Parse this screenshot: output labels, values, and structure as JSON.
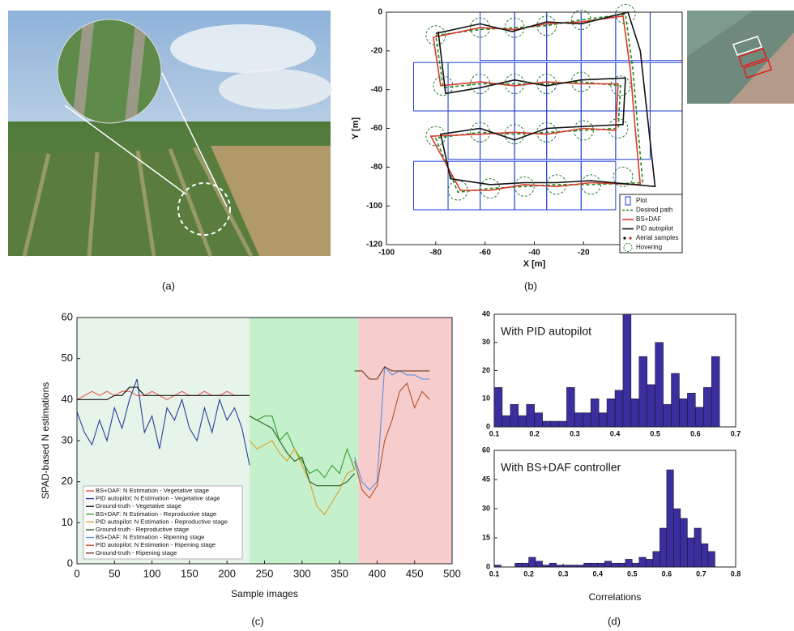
{
  "captions": [
    "(a)",
    "(b)",
    "(c)",
    "(d)"
  ],
  "chart_data": [
    {
      "type": "line",
      "xlabel": "X [m]",
      "ylabel": "Y [m]",
      "xlim": [
        -100,
        20
      ],
      "ylim": [
        -120,
        0
      ],
      "xticks": [
        -100,
        -80,
        -60,
        -40,
        -20
      ],
      "yticks": [
        0,
        -20,
        -40,
        -60,
        -80,
        -100,
        -120
      ],
      "plots": {
        "name": "Plot",
        "color": "#1f3fd6",
        "boxes": [
          [
            -62,
            0,
            -48,
            -25
          ],
          [
            -48,
            0,
            -35,
            -25
          ],
          [
            -35,
            0,
            -21,
            -25
          ],
          [
            -21,
            0,
            -7,
            -25
          ],
          [
            -7,
            0,
            7,
            -25
          ],
          [
            7,
            0,
            20,
            -25
          ],
          [
            -89,
            -26,
            -75,
            -51
          ],
          [
            -75,
            -26,
            -62,
            -51
          ],
          [
            -62,
            -26,
            -48,
            -51
          ],
          [
            -48,
            -26,
            -35,
            -51
          ],
          [
            -35,
            -26,
            -21,
            -51
          ],
          [
            -21,
            -26,
            -7,
            -51
          ],
          [
            -7,
            -26,
            7,
            -51
          ],
          [
            7,
            -26,
            20,
            -51
          ],
          [
            -75,
            -51,
            -62,
            -76
          ],
          [
            -62,
            -51,
            -48,
            -76
          ],
          [
            -48,
            -51,
            -35,
            -76
          ],
          [
            -35,
            -51,
            -21,
            -76
          ],
          [
            -21,
            -51,
            -7,
            -76
          ],
          [
            -7,
            -51,
            7,
            -76
          ],
          [
            -89,
            -77,
            -75,
            -102
          ],
          [
            -75,
            -77,
            -62,
            -102
          ],
          [
            -62,
            -77,
            -48,
            -102
          ],
          [
            -48,
            -77,
            -35,
            -102
          ],
          [
            -35,
            -77,
            -21,
            -102
          ],
          [
            -21,
            -77,
            -7,
            -102
          ]
        ]
      },
      "series": [
        {
          "name": "Desired path",
          "color": "#1a8a1a",
          "style": "dashed",
          "x": [
            -80,
            -62,
            -48,
            -35,
            -21,
            -3,
            0,
            2,
            4,
            -17,
            -31,
            -44,
            -58,
            -71,
            -80,
            -62,
            -48,
            -35,
            -20,
            -6,
            -5,
            -21,
            -35,
            -48,
            -62,
            -77,
            -80
          ],
          "values": [
            -12,
            -9,
            -8,
            -7,
            -4,
            -1,
            -30,
            -60,
            -88,
            -89,
            -89,
            -90,
            -91,
            -93,
            -65,
            -62,
            -63,
            -62,
            -61,
            -60,
            -38,
            -36,
            -37,
            -37,
            -37,
            -39,
            -12
          ]
        },
        {
          "name": "BS+DAF",
          "color": "#d9382c",
          "style": "solid",
          "x": [
            -81,
            -62,
            -48,
            -35,
            -21,
            -4,
            -1,
            1,
            3,
            -17,
            -31,
            -44,
            -58,
            -70,
            -82,
            -62,
            -48,
            -35,
            -20,
            -7,
            -6,
            -21,
            -35,
            -48,
            -62,
            -78,
            -81
          ],
          "values": [
            -13,
            -8,
            -9,
            -6,
            -5,
            -2,
            -30,
            -61,
            -89,
            -88,
            -90,
            -89,
            -92,
            -92,
            -64,
            -63,
            -62,
            -63,
            -60,
            -61,
            -37,
            -37,
            -36,
            -38,
            -36,
            -38,
            -13
          ]
        },
        {
          "name": "PID autopilot",
          "color": "#111111",
          "style": "solid",
          "x": [
            -80,
            -62,
            -49,
            -35,
            -21,
            -2,
            3,
            6,
            9,
            -17,
            -31,
            -44,
            -58,
            -74,
            -78,
            -62,
            -48,
            -35,
            -20,
            -4,
            -3,
            -21,
            -35,
            -48,
            -62,
            -76,
            -79
          ],
          "values": [
            -11,
            -6,
            -10,
            -5,
            -6,
            0,
            -20,
            -55,
            -90,
            -87,
            -88,
            -88,
            -89,
            -86,
            -63,
            -60,
            -66,
            -60,
            -59,
            -58,
            -34,
            -35,
            -38,
            -35,
            -39,
            -42,
            -10
          ]
        }
      ],
      "samples": {
        "name": "Aerial samples",
        "colors": [
          "#000000",
          "#d32f2f"
        ]
      },
      "hovering": {
        "name": "Hovering",
        "color": "#2e7d32",
        "x": [
          -80,
          -62,
          -48,
          -35,
          -21,
          -3,
          -77,
          -62,
          -48,
          -35,
          -21,
          -5,
          -80,
          -62,
          -48,
          -35,
          -20,
          -6,
          -71,
          -58,
          -44,
          -31,
          -17,
          -4
        ],
        "y": [
          -12,
          -8,
          -8,
          -7,
          -4,
          -1,
          -38,
          -37,
          -37,
          -37,
          -36,
          -38,
          -64,
          -62,
          -63,
          -62,
          -61,
          -60,
          -92,
          -91,
          -90,
          -89,
          -89,
          -85
        ]
      }
    },
    {
      "type": "line",
      "xlabel": "Sample images",
      "ylabel": "SPAD-based N estimations",
      "xlim": [
        0,
        500
      ],
      "ylim": [
        0,
        60
      ],
      "xticks": [
        0,
        50,
        100,
        150,
        200,
        250,
        300,
        350,
        400,
        450,
        500
      ],
      "yticks": [
        0,
        10,
        20,
        30,
        40,
        50,
        60
      ],
      "stages": [
        {
          "x": [
            0,
            230
          ],
          "color": "#e7f4ea"
        },
        {
          "x": [
            230,
            375
          ],
          "color": "#c4f0cc"
        },
        {
          "x": [
            375,
            500
          ],
          "color": "#f7cccc"
        }
      ],
      "series": [
        {
          "name": "BS+DAF: N Estimation - Vegetative stage",
          "color": "#e8504a",
          "x": [
            0,
            10,
            20,
            30,
            40,
            50,
            60,
            70,
            80,
            90,
            100,
            110,
            120,
            130,
            140,
            150,
            160,
            170,
            180,
            190,
            200,
            210,
            220,
            230
          ],
          "values": [
            40,
            41,
            42,
            41,
            42,
            41,
            42,
            42,
            41,
            41,
            42,
            41,
            40,
            41,
            42,
            41,
            41,
            42,
            41,
            41,
            42,
            41,
            41,
            41
          ]
        },
        {
          "name": "PID autopilot: N Estimation - Vegetative stage",
          "color": "#2a3f9e",
          "x": [
            0,
            10,
            20,
            30,
            40,
            50,
            60,
            70,
            80,
            90,
            100,
            110,
            120,
            130,
            140,
            150,
            160,
            170,
            180,
            190,
            200,
            210,
            220,
            230
          ],
          "values": [
            37,
            32,
            29,
            35,
            30,
            38,
            33,
            40,
            45,
            32,
            36,
            28,
            38,
            35,
            40,
            33,
            30,
            38,
            32,
            40,
            35,
            38,
            33,
            24
          ]
        },
        {
          "name": "Ground-truth - Vegetative stage",
          "color": "#111111",
          "x": [
            0,
            10,
            20,
            30,
            40,
            50,
            60,
            70,
            80,
            90,
            100,
            110,
            120,
            130,
            140,
            150,
            160,
            170,
            180,
            190,
            200,
            210,
            220,
            230
          ],
          "values": [
            40,
            40,
            40,
            40,
            40,
            41,
            41,
            43,
            43,
            41,
            41,
            41,
            41,
            41,
            41,
            41,
            41,
            41,
            41,
            41,
            41,
            41,
            41,
            41
          ]
        },
        {
          "name": "BS+DAF: N Estimation - Reproductive stage",
          "color": "#3ca02c",
          "x": [
            230,
            240,
            250,
            260,
            270,
            280,
            290,
            300,
            310,
            320,
            330,
            340,
            350,
            360,
            370
          ],
          "values": [
            36,
            35,
            36,
            36,
            30,
            32,
            28,
            25,
            22,
            23,
            21,
            24,
            22,
            28,
            23
          ]
        },
        {
          "name": "PID autopilot: N Estimation - Reproductive stage",
          "color": "#d9a12a",
          "x": [
            230,
            240,
            250,
            260,
            270,
            280,
            290,
            300,
            310,
            320,
            330,
            340,
            350,
            360,
            370
          ],
          "values": [
            30,
            28,
            29,
            30,
            27,
            25,
            28,
            24,
            20,
            14,
            12,
            15,
            18,
            22,
            23
          ]
        },
        {
          "name": "Ground-truth - Reproductive stage",
          "color": "#2d5a1f",
          "x": [
            230,
            240,
            250,
            260,
            270,
            280,
            290,
            300,
            310,
            320,
            330,
            340,
            350,
            360,
            370
          ],
          "values": [
            36,
            35,
            34,
            33,
            30,
            27,
            25,
            26,
            20,
            19,
            19,
            19,
            19,
            20,
            22
          ]
        },
        {
          "name": "BS+DAF: N Estimation - Ripening stage",
          "color": "#5b8fd9",
          "x": [
            370,
            380,
            390,
            400,
            410,
            420,
            430,
            440,
            450,
            460,
            470
          ],
          "values": [
            26,
            20,
            18,
            20,
            48,
            46,
            47,
            46,
            46,
            45,
            45
          ]
        },
        {
          "name": "PID autopilot: N Estimation - Ripening stage",
          "color": "#b5532a",
          "x": [
            370,
            380,
            390,
            400,
            410,
            420,
            430,
            440,
            450,
            460,
            470
          ],
          "values": [
            25,
            18,
            16,
            19,
            30,
            35,
            42,
            44,
            38,
            42,
            40
          ]
        },
        {
          "name": "Ground-truth - Ripening stage",
          "color": "#6b3a1a",
          "x": [
            370,
            380,
            390,
            400,
            410,
            420,
            430,
            440,
            450,
            460,
            470
          ],
          "values": [
            47,
            47,
            45,
            45,
            48,
            47,
            47,
            47,
            47,
            47,
            47
          ]
        }
      ]
    },
    {
      "type": "histogram",
      "annotation": "With PID autopilot",
      "color": "#3b2fa0",
      "xlim": [
        0.1,
        0.7
      ],
      "ylim": [
        0,
        40
      ],
      "xticks": [
        0.1,
        0.2,
        0.3,
        0.4,
        0.5,
        0.6,
        0.7
      ],
      "yticks": [
        0,
        10,
        20,
        30,
        40
      ],
      "bins": [
        0.1,
        0.12,
        0.14,
        0.16,
        0.18,
        0.2,
        0.22,
        0.24,
        0.26,
        0.28,
        0.3,
        0.32,
        0.34,
        0.36,
        0.38,
        0.4,
        0.42,
        0.44,
        0.46,
        0.48,
        0.5,
        0.52,
        0.54,
        0.56,
        0.58,
        0.6,
        0.62,
        0.64,
        0.66
      ],
      "values": [
        14,
        4,
        8,
        4,
        8,
        5,
        2,
        2,
        2,
        14,
        5,
        5,
        10,
        5,
        10,
        13,
        40,
        10,
        25,
        15,
        30,
        8,
        19,
        10,
        12,
        7,
        14,
        25
      ]
    },
    {
      "type": "histogram",
      "annotation": "With BS+DAF controller",
      "xlabel": "Correlations",
      "color": "#3b2fa0",
      "xlim": [
        0.1,
        0.8
      ],
      "ylim": [
        0,
        60
      ],
      "xticks": [
        0.1,
        0.2,
        0.3,
        0.4,
        0.5,
        0.6,
        0.7,
        0.8
      ],
      "yticks": [
        0,
        15,
        30,
        45,
        60
      ],
      "bins": [
        0.1,
        0.12,
        0.14,
        0.16,
        0.18,
        0.2,
        0.22,
        0.24,
        0.26,
        0.28,
        0.3,
        0.32,
        0.34,
        0.36,
        0.38,
        0.4,
        0.42,
        0.44,
        0.46,
        0.48,
        0.5,
        0.52,
        0.54,
        0.56,
        0.58,
        0.6,
        0.62,
        0.64,
        0.66,
        0.68,
        0.7,
        0.72,
        0.74
      ],
      "values": [
        1,
        0,
        0,
        2,
        2,
        5,
        3,
        1,
        2,
        1,
        1,
        1,
        1,
        2,
        2,
        2,
        3,
        2,
        2,
        4,
        2,
        5,
        4,
        8,
        20,
        50,
        30,
        25,
        15,
        20,
        12,
        8
      ]
    }
  ]
}
